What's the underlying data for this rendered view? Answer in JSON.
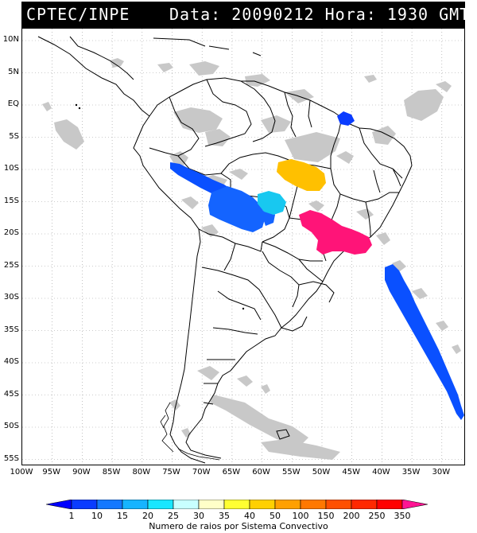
{
  "header": {
    "left": "CPTEC/INPE",
    "right": "Data: 20090212 Hora: 1930 GMT"
  },
  "map": {
    "lat_labels": [
      "10N",
      "5N",
      "EQ",
      "5S",
      "10S",
      "15S",
      "20S",
      "25S",
      "30S",
      "35S",
      "40S",
      "45S",
      "50S",
      "55S"
    ],
    "lon_labels": [
      "100W",
      "95W",
      "90W",
      "85W",
      "80W",
      "75W",
      "70W",
      "65W",
      "60W",
      "55W",
      "50W",
      "45W",
      "40W",
      "35W",
      "30W"
    ],
    "cloud_color": "#c8c8c8",
    "land_border_color": "#000000"
  },
  "colorbar": {
    "labels": [
      "1",
      "10",
      "15",
      "20",
      "25",
      "30",
      "35",
      "40",
      "50",
      "100",
      "150",
      "200",
      "250",
      "350"
    ],
    "colors": [
      "#0000ff",
      "#0a3cff",
      "#1478ff",
      "#16b4ff",
      "#18e6ff",
      "#c8ffff",
      "#ffffc8",
      "#ffff32",
      "#ffd000",
      "#ffa000",
      "#ff7800",
      "#ff5000",
      "#ff2800",
      "#ff0000",
      "#ff1493"
    ],
    "title": "Numero de raios por Sistema Convectivo"
  },
  "systems": [
    {
      "name": "blue-coast-east",
      "color": "#0a50ff"
    },
    {
      "name": "blue-bolivia",
      "color": "#1464ff"
    },
    {
      "name": "cyan-mato-grosso",
      "color": "#18c8f0"
    },
    {
      "name": "yellow-para",
      "color": "#ffc000"
    },
    {
      "name": "pink-southeast",
      "color": "#ff1478"
    },
    {
      "name": "blue-north",
      "color": "#0a3cff"
    },
    {
      "name": "blue-peru",
      "color": "#0a50ff"
    }
  ]
}
